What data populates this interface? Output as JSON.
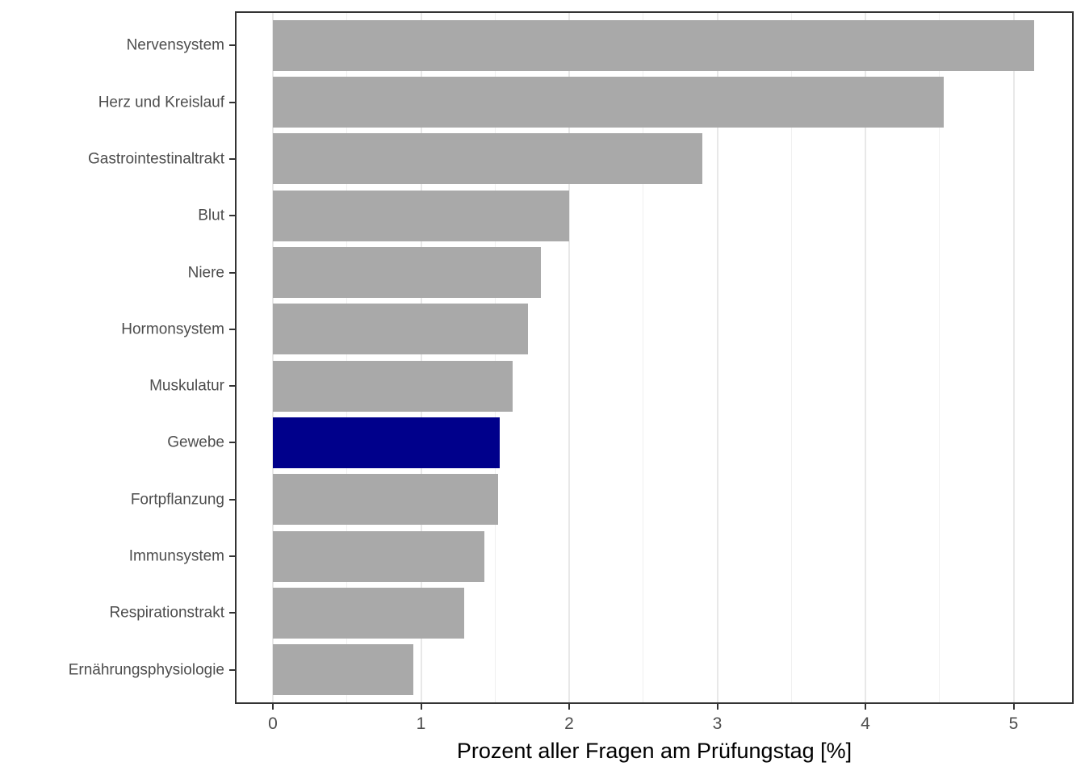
{
  "chart_data": {
    "type": "bar",
    "orientation": "horizontal",
    "title": "",
    "xlabel": "Prozent aller Fragen am Prüfungstag [%]",
    "ylabel": "",
    "categories": [
      "Nervensystem",
      "Herz und Kreislauf",
      "Gastrointestinaltrakt",
      "Blut",
      "Niere",
      "Hormonsystem",
      "Muskulatur",
      "Gewebe",
      "Fortpflanzung",
      "Immunsystem",
      "Respirationstrakt",
      "Ernährungsphysiologie"
    ],
    "values": [
      5.14,
      4.53,
      2.9,
      2.0,
      1.81,
      1.72,
      1.62,
      1.53,
      1.52,
      1.43,
      1.29,
      0.95
    ],
    "highlight_category": "Gewebe",
    "highlight_index": 7,
    "xlim": [
      0,
      5.41
    ],
    "x_major_ticks": [
      0,
      1,
      2,
      3,
      4,
      5
    ],
    "x_minor_ticks": [
      0.5,
      1.5,
      2.5,
      3.5,
      4.5
    ],
    "grid": "major-and-minor-vertical",
    "legend": "none",
    "colors": {
      "bar_default": "#a9a9a9",
      "bar_highlight": "#00008b",
      "panel_border": "#333333",
      "gridline": "#e8e8e8",
      "axis_text": "#4d4d4d",
      "axis_title": "#000000",
      "background": "#ffffff"
    }
  }
}
